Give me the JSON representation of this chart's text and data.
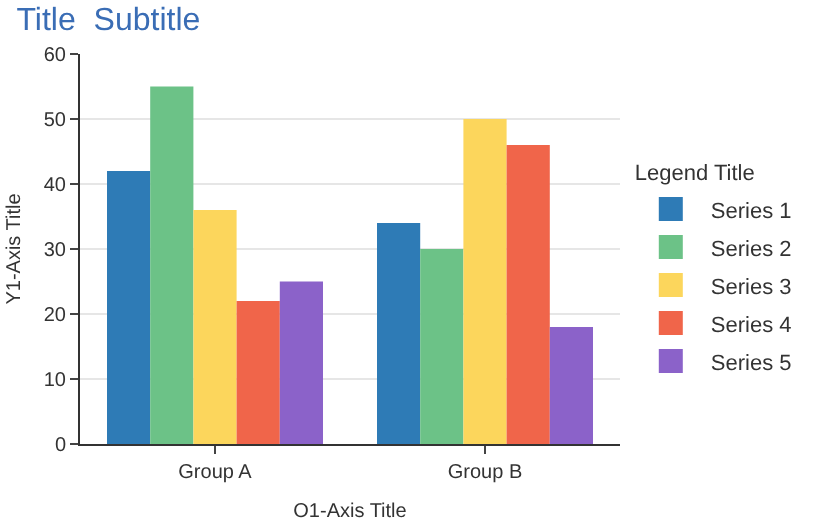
{
  "chart_data": {
    "type": "bar",
    "title": "Title",
    "subtitle": "Subtitle",
    "xlabel": "O1-Axis Title",
    "ylabel": "Y1-Axis Title",
    "legend_title": "Legend Title",
    "categories": [
      "Group A",
      "Group B"
    ],
    "series": [
      {
        "name": "Series 1",
        "color": "#2e7bb6",
        "values": [
          42,
          34
        ]
      },
      {
        "name": "Series 2",
        "color": "#6cc287",
        "values": [
          55,
          30
        ]
      },
      {
        "name": "Series 3",
        "color": "#fcd65c",
        "values": [
          36,
          50
        ]
      },
      {
        "name": "Series 4",
        "color": "#f0654a",
        "values": [
          22,
          46
        ]
      },
      {
        "name": "Series 5",
        "color": "#8b62c9",
        "values": [
          25,
          18
        ]
      }
    ],
    "ylim": [
      0,
      60
    ],
    "yticks": [
      0,
      10,
      20,
      30,
      40,
      50,
      60
    ],
    "grid": "y",
    "legend": "right"
  }
}
